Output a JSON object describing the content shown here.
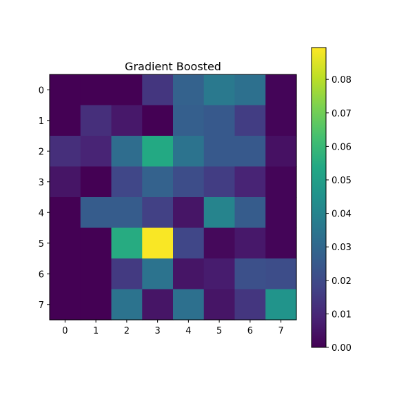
{
  "chart_data": {
    "type": "heatmap",
    "title": "Gradient Boosted",
    "xlabel": "",
    "ylabel": "",
    "x_ticks": [
      "0",
      "1",
      "2",
      "3",
      "4",
      "5",
      "6",
      "7"
    ],
    "y_ticks": [
      "0",
      "1",
      "2",
      "3",
      "4",
      "5",
      "6",
      "7"
    ],
    "values": [
      [
        0.0,
        0.0,
        0.0,
        0.014,
        0.028,
        0.036,
        0.033,
        0.001
      ],
      [
        0.0,
        0.012,
        0.006,
        0.0,
        0.027,
        0.025,
        0.016,
        0.001
      ],
      [
        0.012,
        0.009,
        0.032,
        0.054,
        0.034,
        0.025,
        0.025,
        0.004
      ],
      [
        0.005,
        0.0,
        0.019,
        0.028,
        0.021,
        0.016,
        0.009,
        0.001
      ],
      [
        0.0,
        0.026,
        0.026,
        0.017,
        0.005,
        0.04,
        0.026,
        0.001
      ],
      [
        0.0,
        0.0,
        0.055,
        0.089,
        0.019,
        0.002,
        0.006,
        0.001
      ],
      [
        0.0,
        0.0,
        0.015,
        0.034,
        0.005,
        0.007,
        0.022,
        0.021
      ],
      [
        0.0,
        0.0,
        0.034,
        0.005,
        0.033,
        0.005,
        0.014,
        0.046
      ]
    ],
    "colormap": "viridis",
    "color_range": [
      0.0,
      0.0895
    ],
    "colorbar_ticks": [
      "0.00",
      "0.01",
      "0.02",
      "0.03",
      "0.04",
      "0.05",
      "0.06",
      "0.07",
      "0.08"
    ],
    "colorbar_tick_values": [
      0.0,
      0.01,
      0.02,
      0.03,
      0.04,
      0.05,
      0.06,
      0.07,
      0.08
    ]
  }
}
